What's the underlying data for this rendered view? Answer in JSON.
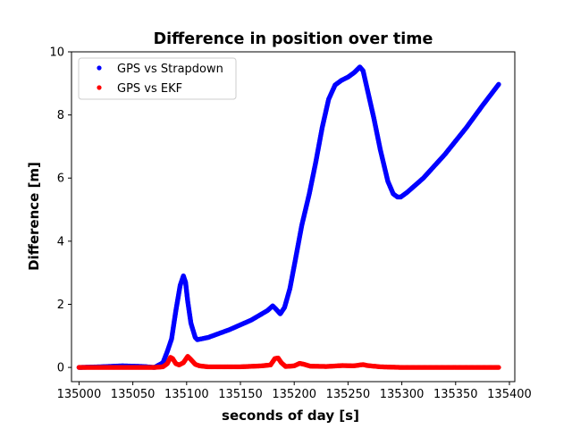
{
  "chart_data": {
    "type": "scatter",
    "title": "Difference in position over time",
    "xlabel": "seconds of day [s]",
    "ylabel": "Difference [m]",
    "xlim": [
      134993,
      135405
    ],
    "ylim": [
      -0.45,
      10
    ],
    "xticks": [
      135000,
      135050,
      135100,
      135150,
      135200,
      135250,
      135300,
      135350,
      135400
    ],
    "yticks": [
      0,
      2,
      4,
      6,
      8,
      10
    ],
    "grid": false,
    "legend_position": "upper-left",
    "series": [
      {
        "name": "GPS vs Strapdown",
        "color": "#0000ff",
        "points": [
          [
            135000,
            0.0
          ],
          [
            135020,
            0.02
          ],
          [
            135040,
            0.05
          ],
          [
            135060,
            0.03
          ],
          [
            135070,
            0.0
          ],
          [
            135078,
            0.15
          ],
          [
            135082,
            0.5
          ],
          [
            135086,
            0.9
          ],
          [
            135090,
            1.8
          ],
          [
            135094,
            2.6
          ],
          [
            135097,
            2.9
          ],
          [
            135099,
            2.7
          ],
          [
            135101,
            2.1
          ],
          [
            135104,
            1.4
          ],
          [
            135108,
            0.95
          ],
          [
            135110,
            0.88
          ],
          [
            135120,
            0.95
          ],
          [
            135140,
            1.2
          ],
          [
            135160,
            1.5
          ],
          [
            135175,
            1.8
          ],
          [
            135180,
            1.95
          ],
          [
            135183,
            1.85
          ],
          [
            135187,
            1.7
          ],
          [
            135191,
            1.9
          ],
          [
            135196,
            2.5
          ],
          [
            135201,
            3.4
          ],
          [
            135207,
            4.5
          ],
          [
            135214,
            5.5
          ],
          [
            135220,
            6.5
          ],
          [
            135226,
            7.6
          ],
          [
            135232,
            8.5
          ],
          [
            135238,
            8.95
          ],
          [
            135244,
            9.1
          ],
          [
            135250,
            9.2
          ],
          [
            135256,
            9.35
          ],
          [
            135261,
            9.52
          ],
          [
            135264,
            9.4
          ],
          [
            135268,
            8.8
          ],
          [
            135274,
            7.9
          ],
          [
            135280,
            6.9
          ],
          [
            135287,
            5.9
          ],
          [
            135292,
            5.5
          ],
          [
            135296,
            5.4
          ],
          [
            135299,
            5.4
          ],
          [
            135305,
            5.55
          ],
          [
            135320,
            6.0
          ],
          [
            135340,
            6.75
          ],
          [
            135360,
            7.6
          ],
          [
            135375,
            8.3
          ],
          [
            135390,
            8.97
          ]
        ]
      },
      {
        "name": "GPS vs EKF",
        "color": "#ff0000",
        "points": [
          [
            135000,
            0.0
          ],
          [
            135040,
            0.0
          ],
          [
            135070,
            0.0
          ],
          [
            135078,
            0.02
          ],
          [
            135082,
            0.12
          ],
          [
            135085,
            0.32
          ],
          [
            135087,
            0.28
          ],
          [
            135090,
            0.12
          ],
          [
            135093,
            0.08
          ],
          [
            135097,
            0.15
          ],
          [
            135101,
            0.35
          ],
          [
            135104,
            0.25
          ],
          [
            135108,
            0.1
          ],
          [
            135112,
            0.05
          ],
          [
            135120,
            0.02
          ],
          [
            135150,
            0.02
          ],
          [
            135170,
            0.05
          ],
          [
            135178,
            0.08
          ],
          [
            135182,
            0.28
          ],
          [
            135185,
            0.3
          ],
          [
            135188,
            0.15
          ],
          [
            135192,
            0.03
          ],
          [
            135200,
            0.05
          ],
          [
            135205,
            0.13
          ],
          [
            135209,
            0.1
          ],
          [
            135215,
            0.04
          ],
          [
            135230,
            0.03
          ],
          [
            135245,
            0.06
          ],
          [
            135255,
            0.05
          ],
          [
            135264,
            0.09
          ],
          [
            135268,
            0.06
          ],
          [
            135280,
            0.02
          ],
          [
            135300,
            0.0
          ],
          [
            135350,
            0.0
          ],
          [
            135390,
            0.0
          ]
        ]
      }
    ]
  }
}
